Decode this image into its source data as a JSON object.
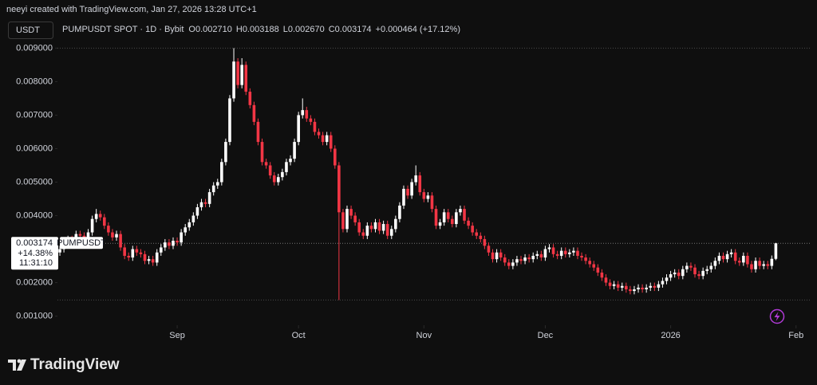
{
  "header": {
    "credit": "neeyi created with TradingView.com, Jan 27, 2026 13:28 UTC+1"
  },
  "chart_data": {
    "type": "candlestick",
    "symbol_box": "USDT",
    "legend": {
      "symbol": "PUMPUSDT SPOT · 1D · Bybit",
      "open_label": "O",
      "open": "0.002710",
      "high_label": "H",
      "high": "0.003188",
      "low_label": "L",
      "low": "0.002670",
      "close_label": "C",
      "close": "0.003174",
      "change": "+0.000464 (+17.12%)"
    },
    "open": [
      0.0029,
      0.003,
      0.00315,
      0.0033,
      0.00325,
      0.00345,
      0.0034,
      0.0033,
      0.0035,
      0.0039,
      0.00405,
      0.00395,
      0.0037,
      0.0035,
      0.00335,
      0.00345,
      0.00305,
      0.0028,
      0.00275,
      0.003,
      0.0029,
      0.00285,
      0.00265,
      0.0027,
      0.0026,
      0.0029,
      0.00305,
      0.0032,
      0.0031,
      0.00325,
      0.0032,
      0.0035,
      0.00365,
      0.0038,
      0.004,
      0.00425,
      0.0044,
      0.00435,
      0.0047,
      0.0049,
      0.005,
      0.0056,
      0.0062,
      0.0075,
      0.0086,
      0.0079,
      0.0085,
      0.0077,
      0.0073,
      0.0068,
      0.0062,
      0.0056,
      0.0055,
      0.0052,
      0.005,
      0.00515,
      0.0053,
      0.0056,
      0.0057,
      0.0062,
      0.007,
      0.00715,
      0.0069,
      0.0068,
      0.0065,
      0.0064,
      0.0062,
      0.0064,
      0.006,
      0.0055,
      0.0041,
      0.0036,
      0.0042,
      0.004,
      0.0038,
      0.0035,
      0.0034,
      0.0037,
      0.0036,
      0.0038,
      0.00355,
      0.00375,
      0.0034,
      0.0036,
      0.0039,
      0.0043,
      0.0048,
      0.0046,
      0.005,
      0.0052,
      0.0047,
      0.0045,
      0.0046,
      0.0042,
      0.0037,
      0.0038,
      0.0041,
      0.0039,
      0.00375,
      0.0041,
      0.0042,
      0.00385,
      0.0037,
      0.0035,
      0.0034,
      0.0033,
      0.0031,
      0.0029,
      0.0027,
      0.0029,
      0.00275,
      0.0026,
      0.0025,
      0.0026,
      0.0027,
      0.00265,
      0.00275,
      0.0027,
      0.0028,
      0.00285,
      0.00275,
      0.003,
      0.00305,
      0.00285,
      0.0028,
      0.00295,
      0.00285,
      0.0029,
      0.00295,
      0.0028,
      0.00275,
      0.00265,
      0.00255,
      0.00245,
      0.0023,
      0.00215,
      0.002,
      0.0019,
      0.00195,
      0.00185,
      0.0019,
      0.0018,
      0.00175,
      0.0018,
      0.00185,
      0.0018,
      0.00185,
      0.0019,
      0.00185,
      0.00195,
      0.00205,
      0.00215,
      0.00225,
      0.0023,
      0.0022,
      0.0024,
      0.0025,
      0.00245,
      0.00225,
      0.0022,
      0.00235,
      0.0024,
      0.0025,
      0.00265,
      0.0028,
      0.0027,
      0.00285,
      0.0029,
      0.00265,
      0.0026,
      0.0028,
      0.00255,
      0.0024,
      0.00265,
      0.0025,
      0.00255,
      0.0025,
      0.00271
    ],
    "high": [
      0.0031,
      0.00325,
      0.0034,
      0.0034,
      0.00355,
      0.00355,
      0.0035,
      0.0036,
      0.004,
      0.0042,
      0.00415,
      0.00405,
      0.0038,
      0.0036,
      0.00355,
      0.00355,
      0.00315,
      0.0029,
      0.0031,
      0.0031,
      0.003,
      0.00295,
      0.0028,
      0.0028,
      0.003,
      0.00315,
      0.0033,
      0.0033,
      0.00335,
      0.00335,
      0.0036,
      0.00375,
      0.0039,
      0.0041,
      0.00435,
      0.0045,
      0.0045,
      0.0048,
      0.005,
      0.0051,
      0.0057,
      0.0063,
      0.0076,
      0.009,
      0.0087,
      0.0087,
      0.0086,
      0.0078,
      0.0074,
      0.0069,
      0.0063,
      0.0057,
      0.0056,
      0.0053,
      0.00525,
      0.0054,
      0.0057,
      0.0058,
      0.0063,
      0.0071,
      0.0075,
      0.00725,
      0.007,
      0.0069,
      0.0066,
      0.0065,
      0.0065,
      0.0065,
      0.0061,
      0.0056,
      0.0042,
      0.0043,
      0.0043,
      0.0041,
      0.0039,
      0.0036,
      0.0038,
      0.0038,
      0.0039,
      0.0039,
      0.00385,
      0.00385,
      0.0037,
      0.004,
      0.0044,
      0.0049,
      0.0049,
      0.0051,
      0.0055,
      0.0053,
      0.0048,
      0.0047,
      0.0047,
      0.0043,
      0.0039,
      0.0042,
      0.0042,
      0.004,
      0.0042,
      0.0043,
      0.0043,
      0.00395,
      0.0038,
      0.0036,
      0.0035,
      0.0034,
      0.0032,
      0.003,
      0.003,
      0.003,
      0.00285,
      0.0027,
      0.0027,
      0.0028,
      0.0028,
      0.00285,
      0.00285,
      0.0029,
      0.00295,
      0.00295,
      0.0031,
      0.00315,
      0.00315,
      0.00295,
      0.00305,
      0.00305,
      0.003,
      0.00305,
      0.00305,
      0.0029,
      0.00285,
      0.00275,
      0.00265,
      0.00255,
      0.0024,
      0.00225,
      0.0021,
      0.00205,
      0.00205,
      0.002,
      0.002,
      0.0019,
      0.0019,
      0.00195,
      0.00195,
      0.00195,
      0.002,
      0.002,
      0.00205,
      0.00215,
      0.00225,
      0.00235,
      0.0024,
      0.0024,
      0.0025,
      0.0026,
      0.0026,
      0.00255,
      0.00235,
      0.00245,
      0.0025,
      0.0026,
      0.00275,
      0.0029,
      0.0029,
      0.00295,
      0.003,
      0.003,
      0.00275,
      0.0029,
      0.0029,
      0.00265,
      0.00275,
      0.00275,
      0.00265,
      0.00265,
      0.00281,
      0.003188
    ],
    "low": [
      0.0028,
      0.0029,
      0.00305,
      0.00315,
      0.00315,
      0.0033,
      0.0032,
      0.0032,
      0.0034,
      0.0038,
      0.00385,
      0.0036,
      0.0034,
      0.00325,
      0.00325,
      0.00295,
      0.0027,
      0.00265,
      0.00265,
      0.0028,
      0.00275,
      0.00255,
      0.00255,
      0.0025,
      0.0025,
      0.0028,
      0.00295,
      0.003,
      0.003,
      0.0031,
      0.0031,
      0.0034,
      0.00355,
      0.0037,
      0.0039,
      0.00415,
      0.00425,
      0.00425,
      0.0046,
      0.0048,
      0.0049,
      0.0055,
      0.0061,
      0.0074,
      0.0078,
      0.0078,
      0.0076,
      0.0072,
      0.0067,
      0.0061,
      0.0055,
      0.0054,
      0.0051,
      0.0049,
      0.0049,
      0.00505,
      0.0052,
      0.0055,
      0.0056,
      0.0061,
      0.0069,
      0.0068,
      0.0067,
      0.0064,
      0.0063,
      0.0061,
      0.0061,
      0.0059,
      0.0054,
      0.00148,
      0.0035,
      0.0035,
      0.0039,
      0.0037,
      0.0034,
      0.0033,
      0.0033,
      0.0035,
      0.0035,
      0.00345,
      0.00345,
      0.0033,
      0.0033,
      0.0035,
      0.0038,
      0.0042,
      0.0045,
      0.0045,
      0.0049,
      0.0046,
      0.0044,
      0.0044,
      0.0041,
      0.0036,
      0.0036,
      0.0037,
      0.0038,
      0.00365,
      0.00365,
      0.004,
      0.00375,
      0.0036,
      0.0034,
      0.0033,
      0.0032,
      0.003,
      0.0028,
      0.0026,
      0.0026,
      0.00265,
      0.0025,
      0.0024,
      0.0024,
      0.0025,
      0.00255,
      0.00255,
      0.0026,
      0.0026,
      0.0027,
      0.00265,
      0.00265,
      0.0029,
      0.00275,
      0.0027,
      0.0027,
      0.00275,
      0.00275,
      0.0028,
      0.0027,
      0.00265,
      0.00255,
      0.00245,
      0.00235,
      0.0022,
      0.00205,
      0.0019,
      0.0018,
      0.0018,
      0.00175,
      0.00175,
      0.0017,
      0.00165,
      0.00165,
      0.0017,
      0.0017,
      0.0017,
      0.00175,
      0.00175,
      0.00175,
      0.00185,
      0.00195,
      0.00205,
      0.00215,
      0.0021,
      0.0021,
      0.0023,
      0.00235,
      0.00215,
      0.0021,
      0.0021,
      0.00225,
      0.0023,
      0.0024,
      0.00255,
      0.0026,
      0.0026,
      0.00275,
      0.00255,
      0.0025,
      0.0025,
      0.00245,
      0.0023,
      0.0023,
      0.0024,
      0.0024,
      0.0024,
      0.0024,
      0.00267
    ],
    "close": [
      0.003,
      0.00315,
      0.0033,
      0.00325,
      0.00345,
      0.0034,
      0.0033,
      0.0035,
      0.0039,
      0.00405,
      0.00395,
      0.0037,
      0.0035,
      0.00335,
      0.00345,
      0.00305,
      0.0028,
      0.00275,
      0.003,
      0.0029,
      0.00285,
      0.00265,
      0.0027,
      0.0026,
      0.0029,
      0.00305,
      0.0032,
      0.0031,
      0.00325,
      0.0032,
      0.0035,
      0.00365,
      0.0038,
      0.004,
      0.00425,
      0.0044,
      0.00435,
      0.0047,
      0.0049,
      0.005,
      0.0056,
      0.0062,
      0.0075,
      0.0086,
      0.0079,
      0.0085,
      0.0077,
      0.0073,
      0.0068,
      0.0062,
      0.0056,
      0.0055,
      0.0052,
      0.005,
      0.00515,
      0.0053,
      0.0056,
      0.0057,
      0.0062,
      0.007,
      0.00715,
      0.0069,
      0.0068,
      0.0065,
      0.0064,
      0.0062,
      0.0064,
      0.006,
      0.0055,
      0.0041,
      0.0036,
      0.0042,
      0.004,
      0.0038,
      0.0035,
      0.0034,
      0.0037,
      0.0036,
      0.0038,
      0.00355,
      0.00375,
      0.0034,
      0.0036,
      0.0039,
      0.0043,
      0.0048,
      0.0046,
      0.005,
      0.0052,
      0.0047,
      0.0045,
      0.0046,
      0.0042,
      0.0037,
      0.0038,
      0.0041,
      0.0039,
      0.00375,
      0.0041,
      0.0042,
      0.00385,
      0.0037,
      0.0035,
      0.0034,
      0.0033,
      0.0031,
      0.0029,
      0.0027,
      0.0029,
      0.00275,
      0.0026,
      0.0025,
      0.0026,
      0.0027,
      0.00265,
      0.00275,
      0.0027,
      0.0028,
      0.00285,
      0.00275,
      0.003,
      0.00305,
      0.00285,
      0.0028,
      0.00295,
      0.00285,
      0.0029,
      0.00295,
      0.0028,
      0.00275,
      0.00265,
      0.00255,
      0.00245,
      0.0023,
      0.00215,
      0.002,
      0.0019,
      0.00195,
      0.00185,
      0.0019,
      0.0018,
      0.00175,
      0.0018,
      0.00185,
      0.0018,
      0.00185,
      0.0019,
      0.00185,
      0.00195,
      0.00205,
      0.00215,
      0.00225,
      0.0023,
      0.0022,
      0.0024,
      0.0025,
      0.00245,
      0.00225,
      0.0022,
      0.00235,
      0.0024,
      0.0025,
      0.00265,
      0.0028,
      0.0027,
      0.00285,
      0.0029,
      0.00265,
      0.0026,
      0.0028,
      0.00255,
      0.0024,
      0.00265,
      0.0025,
      0.00255,
      0.0025,
      0.00271,
      0.003174
    ],
    "up_color": "#ffffff",
    "down_color": "#f23645",
    "xlim": [
      -0.6,
      185.6
    ],
    "xticks": [
      {
        "value": 29,
        "label": "Sep"
      },
      {
        "value": 59,
        "label": "Oct"
      },
      {
        "value": 90,
        "label": "Nov"
      },
      {
        "value": 120,
        "label": "Dec"
      },
      {
        "value": 151,
        "label": "2026"
      },
      {
        "value": 182,
        "label": "Feb"
      }
    ],
    "ylim": [
      0.0008,
      0.0092
    ],
    "yticks": [
      {
        "value": 0.001,
        "label": "0.001000"
      },
      {
        "value": 0.002,
        "label": "0.002000"
      },
      {
        "value": 0.004,
        "label": "0.004000"
      },
      {
        "value": 0.005,
        "label": "0.005000"
      },
      {
        "value": 0.006,
        "label": "0.006000"
      },
      {
        "value": 0.007,
        "label": "0.007000"
      },
      {
        "value": 0.008,
        "label": "0.008000"
      },
      {
        "value": 0.009,
        "label": "0.009000"
      }
    ],
    "last_price": {
      "value": 0.003174,
      "label": "0.003174"
    },
    "price_label": {
      "symbol": "PUMPUSDT",
      "change": "+14.38%",
      "countdown": "11:31:10"
    }
  },
  "footer": {
    "brand": "TradingView"
  }
}
